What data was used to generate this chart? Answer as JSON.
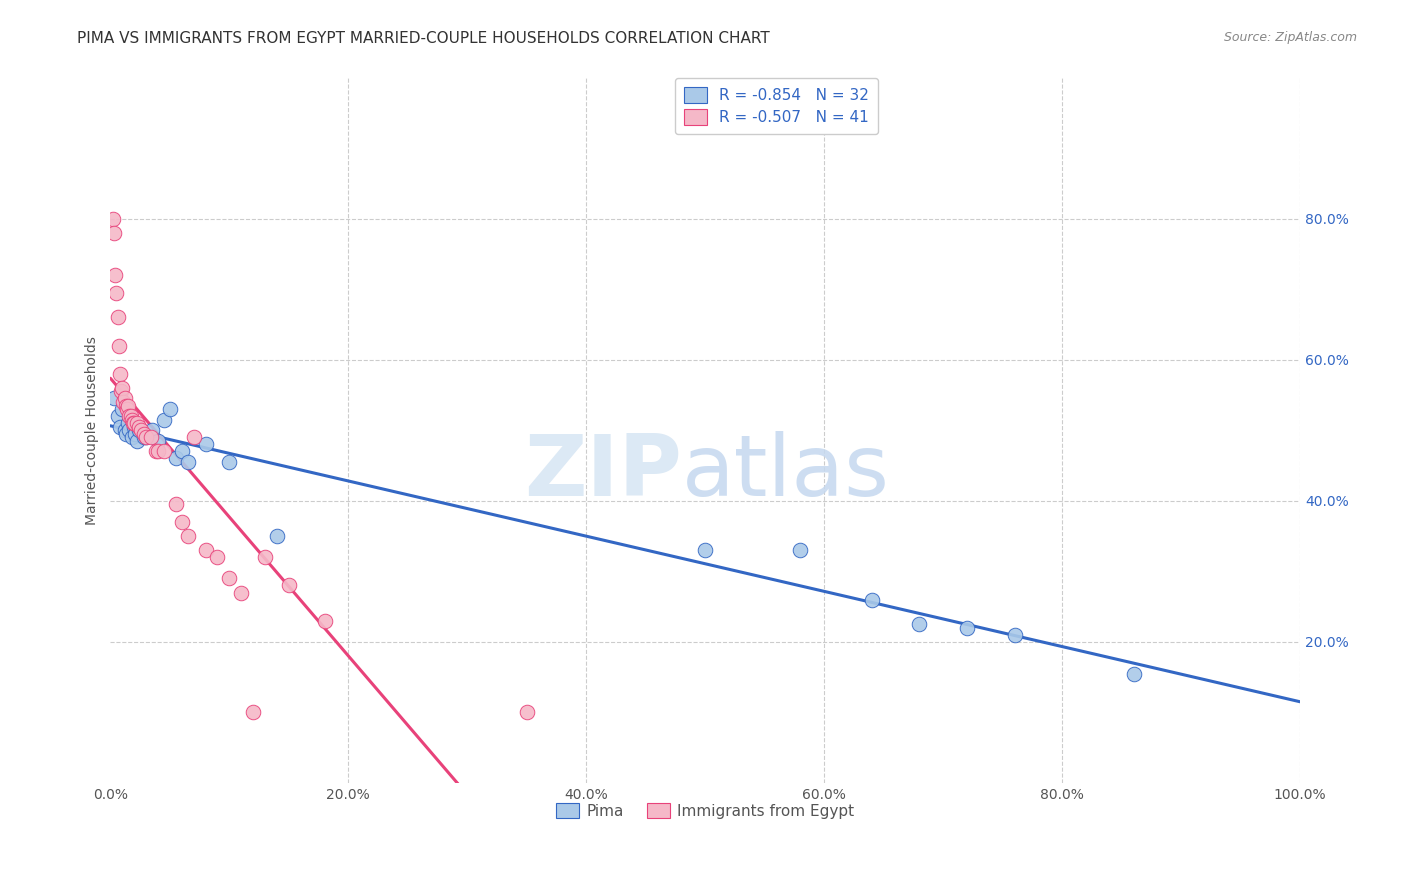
{
  "title": "PIMA VS IMMIGRANTS FROM EGYPT MARRIED-COUPLE HOUSEHOLDS CORRELATION CHART",
  "source": "Source: ZipAtlas.com",
  "ylabel": "Married-couple Households",
  "watermark_zip": "ZIP",
  "watermark_atlas": "atlas",
  "legend_label1": "Pima",
  "legend_label2": "Immigrants from Egypt",
  "r1": -0.854,
  "n1": 32,
  "r2": -0.507,
  "n2": 41,
  "blue_color": "#aac9e8",
  "pink_color": "#f5b8c8",
  "blue_line_color": "#3367c4",
  "pink_line_color": "#e8427a",
  "background_color": "#ffffff",
  "grid_color": "#cccccc",
  "xlim": [
    0,
    1
  ],
  "ylim": [
    0,
    1
  ],
  "xticks": [
    0.0,
    0.2,
    0.4,
    0.6,
    0.8,
    1.0
  ],
  "xticklabels": [
    "0.0%",
    "20.0%",
    "40.0%",
    "60.0%",
    "80.0%",
    "100.0%"
  ],
  "yticks": [
    0.2,
    0.4,
    0.6,
    0.8
  ],
  "yticklabels": [
    "20.0%",
    "40.0%",
    "60.0%",
    "80.0%"
  ],
  "blue_x": [
    0.003,
    0.006,
    0.008,
    0.01,
    0.012,
    0.013,
    0.015,
    0.016,
    0.018,
    0.02,
    0.021,
    0.022,
    0.024,
    0.028,
    0.03,
    0.035,
    0.04,
    0.045,
    0.05,
    0.055,
    0.06,
    0.065,
    0.08,
    0.1,
    0.14,
    0.5,
    0.58,
    0.64,
    0.68,
    0.72,
    0.76,
    0.86
  ],
  "blue_y": [
    0.545,
    0.52,
    0.505,
    0.53,
    0.5,
    0.495,
    0.51,
    0.5,
    0.49,
    0.505,
    0.495,
    0.485,
    0.5,
    0.49,
    0.49,
    0.5,
    0.485,
    0.515,
    0.53,
    0.46,
    0.47,
    0.455,
    0.48,
    0.455,
    0.35,
    0.33,
    0.33,
    0.26,
    0.225,
    0.22,
    0.21,
    0.155
  ],
  "pink_x": [
    0.002,
    0.003,
    0.004,
    0.005,
    0.006,
    0.007,
    0.008,
    0.009,
    0.01,
    0.011,
    0.012,
    0.013,
    0.014,
    0.015,
    0.016,
    0.017,
    0.018,
    0.019,
    0.02,
    0.022,
    0.024,
    0.026,
    0.028,
    0.03,
    0.034,
    0.038,
    0.04,
    0.045,
    0.055,
    0.06,
    0.065,
    0.07,
    0.08,
    0.09,
    0.1,
    0.11,
    0.12,
    0.13,
    0.15,
    0.18,
    0.35
  ],
  "pink_y": [
    0.8,
    0.78,
    0.72,
    0.695,
    0.66,
    0.62,
    0.58,
    0.555,
    0.56,
    0.54,
    0.545,
    0.535,
    0.53,
    0.535,
    0.52,
    0.52,
    0.515,
    0.51,
    0.51,
    0.51,
    0.505,
    0.5,
    0.495,
    0.49,
    0.49,
    0.47,
    0.47,
    0.47,
    0.395,
    0.37,
    0.35,
    0.49,
    0.33,
    0.32,
    0.29,
    0.27,
    0.1,
    0.32,
    0.28,
    0.23,
    0.1
  ],
  "title_fontsize": 11,
  "axis_fontsize": 10,
  "tick_fontsize": 10,
  "legend_fontsize": 11
}
